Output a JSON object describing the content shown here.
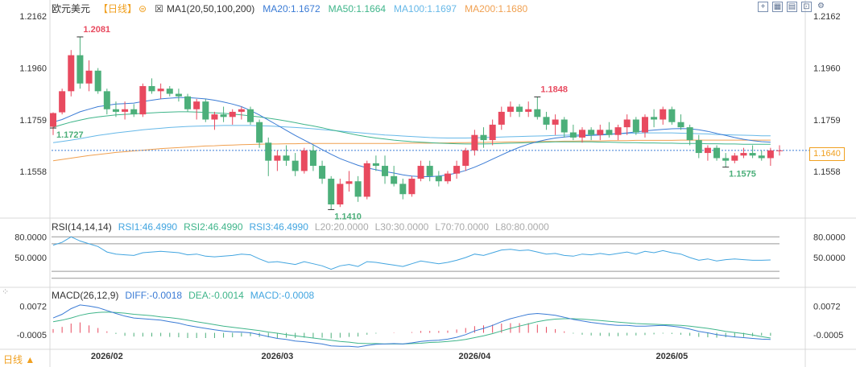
{
  "header": {
    "symbol": "欧元美元",
    "period": "【日线】",
    "period_arrow": "⊜",
    "ma_label": "MA1(20,50,100,200)",
    "ma20": "MA20:1.1672",
    "ma50": "MA50:1.1664",
    "ma100": "MA100:1.1697",
    "ma200": "MA200:1.1680"
  },
  "toolbar": {
    "icons": [
      "crosshair-icon",
      "zoom-in-icon",
      "zoom-out-icon",
      "fullscreen-icon",
      "settings-icon"
    ]
  },
  "rsi_header": {
    "name": "RSI(14,14,14)",
    "rsi1": "RSI1:46.4990",
    "rsi2": "RSI2:46.4990",
    "rsi3": "RSI3:46.4990",
    "l20": "L20:20.0000",
    "l30": "L30:30.0000",
    "l70": "L70:70.0000",
    "l80": "L80:80.0000"
  },
  "macd_header": {
    "name": "MACD(26,12,9)",
    "diff": "DIFF:-0.0018",
    "dea": "DEA:-0.0014",
    "macd": "MACD:-0.0008"
  },
  "last_price": "1.1640",
  "bottom_period": "日线 ▲",
  "colors": {
    "up": "#e84a5f",
    "down": "#4caf7a",
    "ma20": "#3a7bd5",
    "ma50": "#3fb58a",
    "ma100": "#66b8e8",
    "ma200": "#f0a050",
    "rsi": "#42a5e0",
    "diff": "#3a7bd5",
    "dea": "#3fb58a"
  },
  "chart_data": [
    {
      "type": "candlestick",
      "ylim": [
        1.138,
        1.2162
      ],
      "yticks": [
        "1.2162",
        "1.1960",
        "1.1759",
        "1.1558"
      ],
      "xticks": [
        "2026/02",
        "2026/03",
        "2026/04",
        "2026/05"
      ],
      "annotations": [
        {
          "text": "1.2081",
          "kind": "high"
        },
        {
          "text": "1.1727",
          "kind": "low"
        },
        {
          "text": "1.1410",
          "kind": "low"
        },
        {
          "text": "1.1848",
          "kind": "high"
        },
        {
          "text": "1.1575",
          "kind": "low"
        }
      ],
      "candles": [
        [
          1.1732,
          1.1788,
          1.17,
          1.1785
        ],
        [
          1.1788,
          1.188,
          1.178,
          1.187
        ],
        [
          1.187,
          1.203,
          1.185,
          1.201
        ],
        [
          1.201,
          1.2081,
          1.188,
          1.19
        ],
        [
          1.19,
          1.199,
          1.187,
          1.195
        ],
        [
          1.195,
          1.196,
          1.186,
          1.187
        ],
        [
          1.187,
          1.188,
          1.178,
          1.18
        ],
        [
          1.18,
          1.183,
          1.177,
          1.179
        ],
        [
          1.179,
          1.183,
          1.176,
          1.18
        ],
        [
          1.18,
          1.182,
          1.177,
          1.178
        ],
        [
          1.178,
          1.19,
          1.177,
          1.189
        ],
        [
          1.189,
          1.192,
          1.186,
          1.187
        ],
        [
          1.187,
          1.19,
          1.184,
          1.188
        ],
        [
          1.188,
          1.189,
          1.185,
          1.186
        ],
        [
          1.186,
          1.188,
          1.183,
          1.185
        ],
        [
          1.185,
          1.186,
          1.179,
          1.18
        ],
        [
          1.18,
          1.184,
          1.176,
          1.183
        ],
        [
          1.183,
          1.184,
          1.175,
          1.176
        ],
        [
          1.176,
          1.179,
          1.172,
          1.178
        ],
        [
          1.178,
          1.181,
          1.175,
          1.177
        ],
        [
          1.177,
          1.18,
          1.174,
          1.179
        ],
        [
          1.179,
          1.181,
          1.176,
          1.18
        ],
        [
          1.18,
          1.181,
          1.174,
          1.175
        ],
        [
          1.175,
          1.176,
          1.165,
          1.167
        ],
        [
          1.167,
          1.169,
          1.154,
          1.16
        ],
        [
          1.16,
          1.164,
          1.156,
          1.162
        ],
        [
          1.162,
          1.166,
          1.158,
          1.16
        ],
        [
          1.16,
          1.163,
          1.154,
          1.156
        ],
        [
          1.156,
          1.165,
          1.155,
          1.164
        ],
        [
          1.164,
          1.166,
          1.156,
          1.158
        ],
        [
          1.158,
          1.16,
          1.151,
          1.153
        ],
        [
          1.153,
          1.154,
          1.141,
          1.143
        ],
        [
          1.143,
          1.153,
          1.142,
          1.151
        ],
        [
          1.151,
          1.156,
          1.148,
          1.152
        ],
        [
          1.152,
          1.154,
          1.144,
          1.146
        ],
        [
          1.146,
          1.16,
          1.145,
          1.159
        ],
        [
          1.159,
          1.162,
          1.156,
          1.158
        ],
        [
          1.158,
          1.162,
          1.151,
          1.154
        ],
        [
          1.154,
          1.158,
          1.15,
          1.151
        ],
        [
          1.151,
          1.153,
          1.145,
          1.147
        ],
        [
          1.147,
          1.154,
          1.146,
          1.153
        ],
        [
          1.153,
          1.16,
          1.152,
          1.158
        ],
        [
          1.158,
          1.16,
          1.152,
          1.154
        ],
        [
          1.154,
          1.156,
          1.15,
          1.152
        ],
        [
          1.152,
          1.156,
          1.151,
          1.155
        ],
        [
          1.155,
          1.16,
          1.153,
          1.158
        ],
        [
          1.158,
          1.165,
          1.156,
          1.164
        ],
        [
          1.164,
          1.172,
          1.162,
          1.17
        ],
        [
          1.17,
          1.173,
          1.165,
          1.168
        ],
        [
          1.168,
          1.176,
          1.166,
          1.174
        ],
        [
          1.174,
          1.181,
          1.172,
          1.179
        ],
        [
          1.179,
          1.183,
          1.177,
          1.181
        ],
        [
          1.181,
          1.182,
          1.177,
          1.179
        ],
        [
          1.179,
          1.183,
          1.177,
          1.18
        ],
        [
          1.18,
          1.1848,
          1.176,
          1.177
        ],
        [
          1.177,
          1.179,
          1.172,
          1.174
        ],
        [
          1.174,
          1.178,
          1.17,
          1.176
        ],
        [
          1.176,
          1.177,
          1.169,
          1.171
        ],
        [
          1.171,
          1.174,
          1.168,
          1.169
        ],
        [
          1.169,
          1.173,
          1.167,
          1.172
        ],
        [
          1.172,
          1.173,
          1.168,
          1.17
        ],
        [
          1.17,
          1.174,
          1.168,
          1.172
        ],
        [
          1.172,
          1.175,
          1.169,
          1.17
        ],
        [
          1.17,
          1.174,
          1.168,
          1.173
        ],
        [
          1.173,
          1.178,
          1.17,
          1.176
        ],
        [
          1.176,
          1.177,
          1.17,
          1.171
        ],
        [
          1.171,
          1.178,
          1.169,
          1.177
        ],
        [
          1.177,
          1.18,
          1.173,
          1.176
        ],
        [
          1.176,
          1.181,
          1.174,
          1.18
        ],
        [
          1.18,
          1.181,
          1.174,
          1.175
        ],
        [
          1.175,
          1.178,
          1.172,
          1.173
        ],
        [
          1.173,
          1.174,
          1.166,
          1.168
        ],
        [
          1.168,
          1.17,
          1.161,
          1.163
        ],
        [
          1.163,
          1.166,
          1.16,
          1.165
        ],
        [
          1.165,
          1.166,
          1.16,
          1.161
        ],
        [
          1.161,
          1.163,
          1.1575,
          1.16
        ],
        [
          1.16,
          1.163,
          1.159,
          1.162
        ],
        [
          1.162,
          1.165,
          1.161,
          1.163
        ],
        [
          1.163,
          1.166,
          1.161,
          1.162
        ],
        [
          1.162,
          1.164,
          1.16,
          1.161
        ],
        [
          1.161,
          1.165,
          1.158,
          1.164
        ],
        [
          1.164,
          1.166,
          1.162,
          1.164
        ]
      ],
      "ma20": [
        1.175,
        1.176,
        1.1775,
        1.179,
        1.18,
        1.181,
        1.1815,
        1.182,
        1.1822,
        1.1824,
        1.183,
        1.1835,
        1.184,
        1.1843,
        1.1845,
        1.1845,
        1.1843,
        1.184,
        1.1835,
        1.1828,
        1.182,
        1.181,
        1.1795,
        1.1778,
        1.1758,
        1.1738,
        1.1718,
        1.1698,
        1.168,
        1.1662,
        1.1643,
        1.1625,
        1.1608,
        1.1595,
        1.1582,
        1.1572,
        1.1565,
        1.1558,
        1.1552,
        1.1545,
        1.154,
        1.1538,
        1.1538,
        1.154,
        1.1545,
        1.1552,
        1.1562,
        1.1575,
        1.159,
        1.1606,
        1.1622,
        1.1638,
        1.1652,
        1.1664,
        1.1674,
        1.1682,
        1.1688,
        1.1692,
        1.1695,
        1.1697,
        1.1698,
        1.17,
        1.1702,
        1.1705,
        1.1708,
        1.1712,
        1.1716,
        1.1719,
        1.1722,
        1.1724,
        1.1725,
        1.1724,
        1.172,
        1.1714,
        1.1706,
        1.1698,
        1.169,
        1.1683,
        1.1678,
        1.1674,
        1.1672
      ],
      "ma50": [
        1.173,
        1.174,
        1.175,
        1.1758,
        1.1765,
        1.177,
        1.1774,
        1.1778,
        1.178,
        1.1782,
        1.1784,
        1.1786,
        1.1788,
        1.1789,
        1.179,
        1.179,
        1.1789,
        1.1788,
        1.1786,
        1.1784,
        1.1781,
        1.1778,
        1.1774,
        1.177,
        1.1765,
        1.176,
        1.1754,
        1.1748,
        1.1741,
        1.1735,
        1.1728,
        1.172,
        1.1713,
        1.1706,
        1.1699,
        1.1693,
        1.1688,
        1.1684,
        1.168,
        1.1677,
        1.1674,
        1.1672,
        1.167,
        1.1668,
        1.1667,
        1.1666,
        1.1665,
        1.1665,
        1.1665,
        1.1666,
        1.1667,
        1.1668,
        1.1669,
        1.167,
        1.1671,
        1.1672,
        1.1673,
        1.1673,
        1.1673,
        1.1673,
        1.1673,
        1.1672,
        1.1672,
        1.1671,
        1.167,
        1.167,
        1.1669,
        1.1669,
        1.1668,
        1.1668,
        1.1667,
        1.1667,
        1.1667,
        1.1666,
        1.1666,
        1.1665,
        1.1665,
        1.1664,
        1.1664,
        1.1664,
        1.1664
      ],
      "ma100": [
        1.167,
        1.1675,
        1.168,
        1.1686,
        1.1692,
        1.1698,
        1.1703,
        1.1708,
        1.1712,
        1.1716,
        1.172,
        1.1723,
        1.1726,
        1.1729,
        1.1731,
        1.1733,
        1.1734,
        1.1735,
        1.1736,
        1.1737,
        1.1737,
        1.1737,
        1.1737,
        1.1736,
        1.1735,
        1.1733,
        1.1731,
        1.1729,
        1.1727,
        1.1724,
        1.1721,
        1.1718,
        1.1715,
        1.1712,
        1.1709,
        1.1706,
        1.1703,
        1.17,
        1.1698,
        1.1696,
        1.1694,
        1.1692,
        1.169,
        1.1689,
        1.1688,
        1.1688,
        1.1688,
        1.1689,
        1.169,
        1.1691,
        1.1692,
        1.1693,
        1.1694,
        1.1695,
        1.1696,
        1.1697,
        1.1698,
        1.1699,
        1.17,
        1.1701,
        1.1702,
        1.1703,
        1.1704,
        1.1705,
        1.1706,
        1.1707,
        1.1708,
        1.1708,
        1.1708,
        1.1708,
        1.1707,
        1.1706,
        1.1705,
        1.1704,
        1.1702,
        1.1701,
        1.17,
        1.1699,
        1.1698,
        1.1697,
        1.1697
      ],
      "ma200": [
        1.16,
        1.1605,
        1.161,
        1.1615,
        1.162,
        1.1624,
        1.1628,
        1.1632,
        1.1635,
        1.1638,
        1.1641,
        1.1644,
        1.1647,
        1.1649,
        1.1651,
        1.1653,
        1.1655,
        1.1657,
        1.1658,
        1.166,
        1.1661,
        1.1662,
        1.1663,
        1.1664,
        1.1665,
        1.1665,
        1.1666,
        1.1666,
        1.1667,
        1.1667,
        1.1667,
        1.1667,
        1.1667,
        1.1667,
        1.1667,
        1.1667,
        1.1667,
        1.1667,
        1.1667,
        1.1668,
        1.1668,
        1.1668,
        1.1668,
        1.1669,
        1.1669,
        1.167,
        1.167,
        1.1671,
        1.1671,
        1.1672,
        1.1672,
        1.1673,
        1.1673,
        1.1674,
        1.1674,
        1.1675,
        1.1675,
        1.1676,
        1.1676,
        1.1677,
        1.1677,
        1.1677,
        1.1678,
        1.1678,
        1.1678,
        1.1679,
        1.1679,
        1.1679,
        1.1679,
        1.1679,
        1.168,
        1.168,
        1.168,
        1.168,
        1.168,
        1.168,
        1.168,
        1.168,
        1.168,
        1.168,
        1.168
      ]
    },
    {
      "type": "line",
      "name": "RSI",
      "yticks": [
        "80.0000",
        "50.0000"
      ],
      "levels": [
        80,
        70,
        30,
        20
      ],
      "ylim": [
        15,
        85
      ],
      "values": [
        68,
        72,
        80,
        74,
        70,
        66,
        58,
        55,
        54,
        53,
        57,
        58,
        59,
        58,
        57,
        54,
        55,
        52,
        51,
        52,
        53,
        55,
        54,
        48,
        43,
        44,
        42,
        40,
        44,
        41,
        38,
        33,
        38,
        40,
        37,
        44,
        43,
        41,
        39,
        37,
        41,
        45,
        43,
        41,
        43,
        46,
        50,
        55,
        53,
        57,
        61,
        62,
        60,
        61,
        58,
        55,
        56,
        53,
        52,
        55,
        54,
        56,
        54,
        56,
        58,
        55,
        59,
        57,
        60,
        57,
        55,
        50,
        46,
        48,
        45,
        47,
        48,
        47,
        46,
        46,
        46.5
      ]
    },
    {
      "type": "bar",
      "name": "MACD",
      "yticks": [
        "0.0072",
        "-0.0005"
      ],
      "ylim": [
        -0.004,
        0.009
      ],
      "diff": [
        0.004,
        0.005,
        0.0065,
        0.0075,
        0.0072,
        0.0068,
        0.006,
        0.0052,
        0.0045,
        0.004,
        0.0038,
        0.0036,
        0.0034,
        0.003,
        0.0026,
        0.002,
        0.0016,
        0.0012,
        0.0008,
        0.0005,
        0.0003,
        0.0002,
        0.0,
        -0.0005,
        -0.001,
        -0.0015,
        -0.0018,
        -0.0022,
        -0.0024,
        -0.0027,
        -0.003,
        -0.0035,
        -0.0036,
        -0.0036,
        -0.0038,
        -0.0034,
        -0.0031,
        -0.003,
        -0.0029,
        -0.003,
        -0.0027,
        -0.0023,
        -0.0021,
        -0.002,
        -0.0017,
        -0.0012,
        -0.0005,
        0.0005,
        0.0012,
        0.002,
        0.003,
        0.0038,
        0.0044,
        0.005,
        0.0052,
        0.005,
        0.0047,
        0.0042,
        0.0036,
        0.0032,
        0.0028,
        0.0025,
        0.0022,
        0.002,
        0.002,
        0.0018,
        0.0018,
        0.0019,
        0.002,
        0.0018,
        0.0015,
        0.001,
        0.0004,
        0.0,
        -0.0005,
        -0.0008,
        -0.0011,
        -0.0013,
        -0.0015,
        -0.0017,
        -0.0018
      ],
      "dea": [
        0.003,
        0.0034,
        0.004,
        0.0047,
        0.0052,
        0.0055,
        0.0056,
        0.0055,
        0.0053,
        0.005,
        0.0048,
        0.0046,
        0.0043,
        0.0041,
        0.0038,
        0.0034,
        0.003,
        0.0026,
        0.0022,
        0.0018,
        0.0015,
        0.0012,
        0.0009,
        0.0006,
        0.0002,
        -0.0001,
        -0.0005,
        -0.0008,
        -0.0011,
        -0.0014,
        -0.0017,
        -0.002,
        -0.0023,
        -0.0025,
        -0.0028,
        -0.0029,
        -0.0029,
        -0.003,
        -0.003,
        -0.003,
        -0.0029,
        -0.0028,
        -0.0026,
        -0.0025,
        -0.0023,
        -0.0021,
        -0.0018,
        -0.0013,
        -0.0008,
        -0.0002,
        0.0005,
        0.0012,
        0.0018,
        0.0024,
        0.003,
        0.0034,
        0.0037,
        0.0038,
        0.0038,
        0.0037,
        0.0035,
        0.0033,
        0.0031,
        0.0029,
        0.0027,
        0.0025,
        0.0024,
        0.0023,
        0.0022,
        0.0021,
        0.002,
        0.0018,
        0.0015,
        0.0012,
        0.0008,
        0.0004,
        0.0001,
        -0.0002,
        -0.0006,
        -0.001,
        -0.0014
      ],
      "macd": [
        0.001,
        0.0016,
        0.0025,
        0.0028,
        0.002,
        0.0013,
        0.0004,
        -0.0003,
        -0.0008,
        -0.001,
        -0.001,
        -0.001,
        -0.0009,
        -0.0011,
        -0.0012,
        -0.0014,
        -0.0014,
        -0.0014,
        -0.0014,
        -0.0013,
        -0.0012,
        -0.001,
        -0.0009,
        -0.0011,
        -0.0012,
        -0.0014,
        -0.0013,
        -0.0014,
        -0.0013,
        -0.0013,
        -0.0013,
        -0.0015,
        -0.0013,
        -0.0011,
        -0.001,
        -0.0005,
        -0.0002,
        0.0,
        0.0001,
        0.0,
        0.0002,
        0.0005,
        0.0005,
        0.0005,
        0.0006,
        0.0009,
        0.0013,
        0.0018,
        0.002,
        0.0022,
        0.0025,
        0.0026,
        0.0026,
        0.0026,
        0.0022,
        0.0016,
        0.001,
        0.0004,
        -0.0002,
        -0.0005,
        -0.0007,
        -0.0008,
        -0.0009,
        -0.0009,
        -0.0007,
        -0.0007,
        -0.0006,
        -0.0004,
        -0.0002,
        -0.0003,
        -0.0005,
        -0.0008,
        -0.0011,
        -0.0012,
        -0.0013,
        -0.0012,
        -0.0012,
        -0.0011,
        -0.0009,
        -0.0007,
        -0.0008
      ]
    }
  ]
}
